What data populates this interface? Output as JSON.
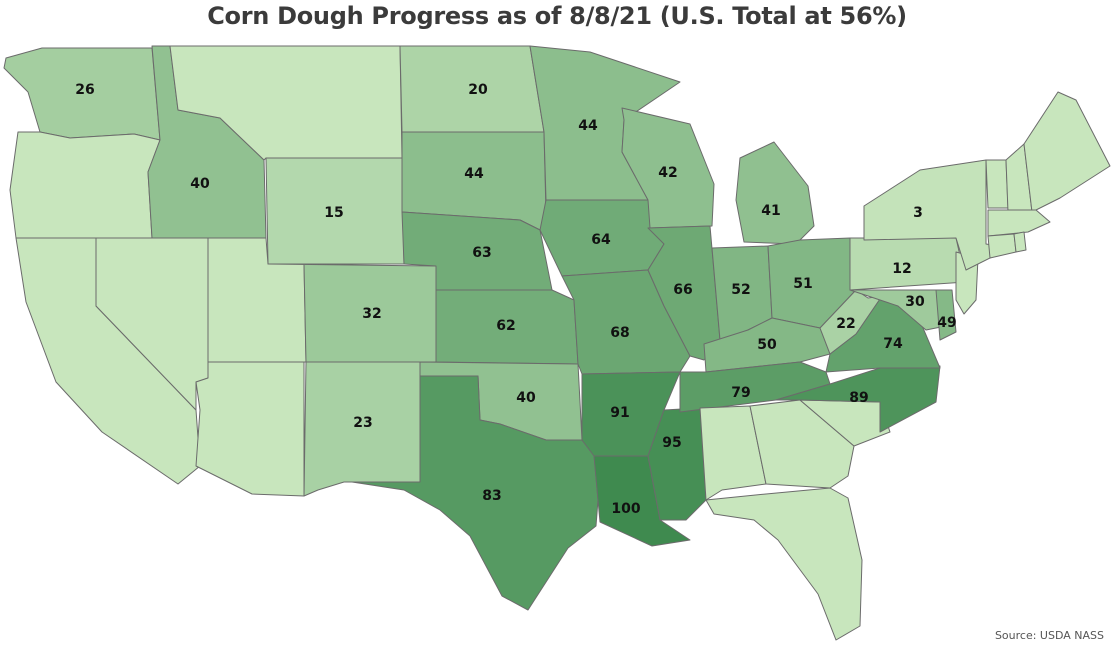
{
  "title": "Corn Dough Progress as of 8/8/21 (U.S. Total at 56%)",
  "source": "Source: USDA NASS",
  "color_scale": {
    "low": "#c8e6bd",
    "high": "#3f8a4f",
    "min": 0,
    "max": 100,
    "no_data": "#c8e6bd"
  },
  "states": [
    {
      "id": "WA",
      "value": "26"
    },
    {
      "id": "OR",
      "value": ""
    },
    {
      "id": "CA",
      "value": ""
    },
    {
      "id": "NV",
      "value": ""
    },
    {
      "id": "ID",
      "value": "40"
    },
    {
      "id": "MT",
      "value": ""
    },
    {
      "id": "WY",
      "value": "15"
    },
    {
      "id": "UT",
      "value": ""
    },
    {
      "id": "AZ",
      "value": ""
    },
    {
      "id": "CO",
      "value": "32"
    },
    {
      "id": "NM",
      "value": "23"
    },
    {
      "id": "ND",
      "value": "20"
    },
    {
      "id": "SD",
      "value": "44"
    },
    {
      "id": "NE",
      "value": "63"
    },
    {
      "id": "KS",
      "value": "62"
    },
    {
      "id": "OK",
      "value": "40"
    },
    {
      "id": "TX",
      "value": "83"
    },
    {
      "id": "MN",
      "value": "44"
    },
    {
      "id": "IA",
      "value": "64"
    },
    {
      "id": "MO",
      "value": "68"
    },
    {
      "id": "AR",
      "value": "91"
    },
    {
      "id": "LA",
      "value": "100"
    },
    {
      "id": "WI",
      "value": "42"
    },
    {
      "id": "IL",
      "value": "66"
    },
    {
      "id": "MS",
      "value": "95"
    },
    {
      "id": "MI",
      "value": "41"
    },
    {
      "id": "IN",
      "value": "52"
    },
    {
      "id": "OH",
      "value": "51"
    },
    {
      "id": "KY",
      "value": "50"
    },
    {
      "id": "TN",
      "value": "79"
    },
    {
      "id": "AL",
      "value": ""
    },
    {
      "id": "GA",
      "value": ""
    },
    {
      "id": "FL",
      "value": ""
    },
    {
      "id": "SC",
      "value": ""
    },
    {
      "id": "NC",
      "value": "89"
    },
    {
      "id": "VA",
      "value": "74"
    },
    {
      "id": "WV",
      "value": "22"
    },
    {
      "id": "PA",
      "value": "12"
    },
    {
      "id": "MD",
      "value": "30"
    },
    {
      "id": "DE",
      "value": "49"
    },
    {
      "id": "NJ",
      "value": ""
    },
    {
      "id": "NY",
      "value": "3"
    },
    {
      "id": "VT",
      "value": ""
    },
    {
      "id": "NH",
      "value": ""
    },
    {
      "id": "ME",
      "value": ""
    },
    {
      "id": "MA",
      "value": ""
    },
    {
      "id": "CT",
      "value": ""
    },
    {
      "id": "RI",
      "value": ""
    }
  ]
}
